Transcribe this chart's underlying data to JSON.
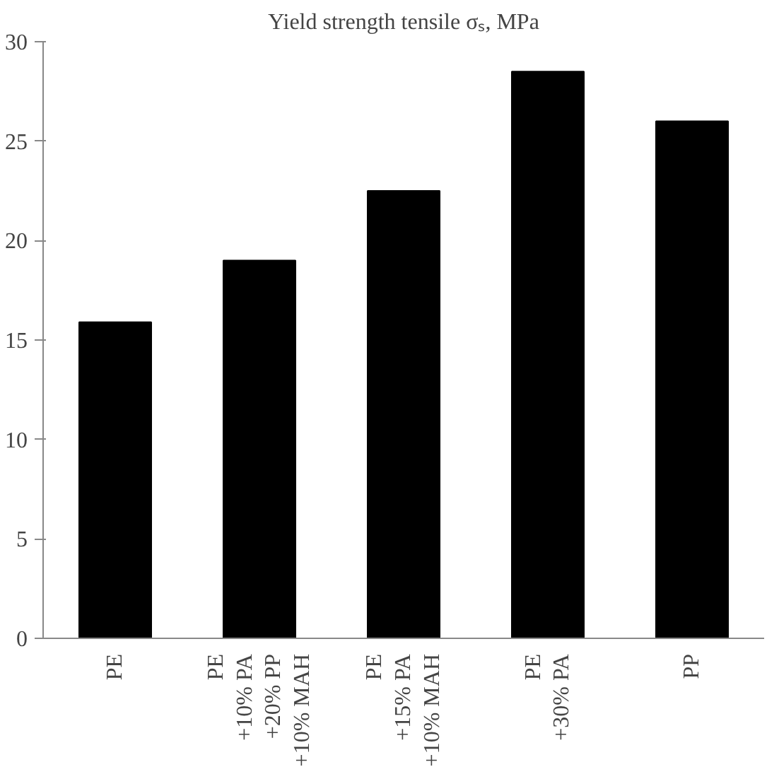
{
  "chart_data": {
    "type": "bar",
    "title": "Yield strength tensile σₛ, MPa",
    "categories": [
      "PE",
      "PE\n+10% PA\n+20% PP\n+10% MAH",
      "PE\n+15% PA\n+10% MAH",
      "PE\n+30% PA",
      "PP"
    ],
    "values": [
      15.9,
      19,
      22.5,
      28.5,
      26
    ],
    "color": "#000000",
    "ylim": [
      0,
      30
    ],
    "yticks": [
      0,
      5,
      10,
      15,
      20,
      25,
      30
    ],
    "grid": false
  }
}
